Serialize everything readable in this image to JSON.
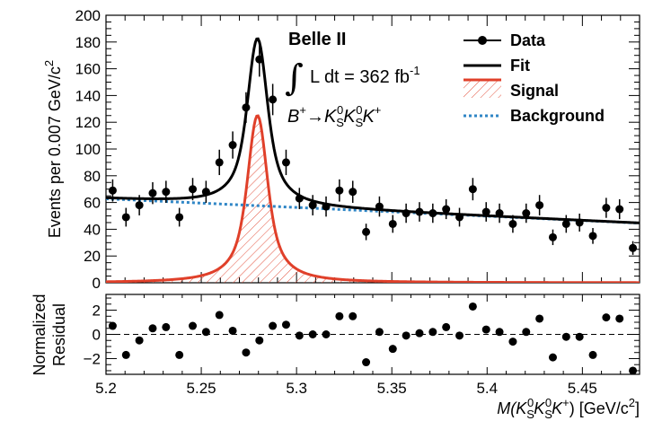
{
  "chart_data": [
    {
      "type": "scatter",
      "panel": "main",
      "title": "",
      "xlabel_parts": {
        "pre": "M(K",
        "s1": "S",
        "p1": "0",
        "mid": "K",
        "s2": "S",
        "p2": "0",
        "k": "K",
        "p3": "+",
        "post": ") [GeV/c",
        "p4": "2",
        "end": "]"
      },
      "ylabel": "Events per 0.007 GeV/c",
      "ylabel_sup": "2",
      "xlim": [
        5.2,
        5.48
      ],
      "ylim": [
        0,
        200
      ],
      "x_ticks": [
        "5.2",
        "5.25",
        "5.3",
        "5.35",
        "5.4",
        "5.45"
      ],
      "x_tick_values": [
        5.2,
        5.25,
        5.3,
        5.35,
        5.4,
        5.45
      ],
      "y_ticks": [
        0,
        20,
        40,
        60,
        80,
        100,
        120,
        140,
        160,
        180,
        200
      ],
      "y_tick_labels": [
        "0",
        "20",
        "40",
        "60",
        "80",
        "100",
        "120",
        "140",
        "160",
        "180",
        "200"
      ],
      "series": [
        {
          "name": "Data",
          "x": [
            5.2035,
            5.2105,
            5.2175,
            5.2245,
            5.2315,
            5.2385,
            5.2455,
            5.2525,
            5.2595,
            5.2665,
            5.2735,
            5.2805,
            5.2875,
            5.2945,
            5.3015,
            5.3085,
            5.3155,
            5.3225,
            5.3295,
            5.3365,
            5.3435,
            5.3505,
            5.3575,
            5.3645,
            5.3715,
            5.3785,
            5.3855,
            5.3925,
            5.3995,
            5.4065,
            5.4135,
            5.4205,
            5.4275,
            5.4345,
            5.4415,
            5.4485,
            5.4555,
            5.4625,
            5.4695,
            5.4765
          ],
          "y": [
            69,
            49,
            58,
            67,
            68,
            49,
            70,
            68,
            90,
            103,
            131,
            167,
            137,
            90,
            63,
            58,
            57,
            69,
            68,
            38,
            57,
            44,
            52,
            53,
            52,
            55,
            49,
            70,
            53,
            52,
            44,
            52,
            58,
            34,
            44,
            45,
            35,
            56,
            55,
            26
          ]
        },
        {
          "name": "Fit",
          "x": [],
          "y": []
        },
        {
          "name": "Signal",
          "x": [],
          "y": []
        },
        {
          "name": "Background",
          "x": [
            5.2,
            5.48
          ],
          "y": [
            62.8,
            44.6
          ]
        }
      ],
      "model": {
        "signal_peak_x": 5.2795,
        "signal_amplitude": 125,
        "signal_core_width": 0.0045,
        "signal_core_fraction": 0.3,
        "signal_lorentz_width": 0.0075,
        "background_y_at_5_2": 62.8,
        "background_y_at_5_48": 44.6
      },
      "legend": [
        "Data",
        "Fit",
        "Signal",
        "Background"
      ],
      "legend_position": "top-right",
      "annotations": {
        "experiment": "Belle II",
        "integral": "∫",
        "lumi": "L dt = 362 fb",
        "lumi_sup": "-1",
        "decay": {
          "b": "B",
          "b_sup": "+",
          "arrow": "→",
          "k": "K",
          "k_sub": "S",
          "k_sup": "0",
          "kp_sup": "+"
        }
      }
    },
    {
      "type": "scatter",
      "panel": "residual",
      "ylabel_line1": "Normalized",
      "ylabel_line2": "Residual",
      "ylim": [
        -3.3,
        3.3
      ],
      "y_ticks": [
        -2,
        0,
        2
      ],
      "y_tick_labels": [
        "−2",
        "0",
        "2"
      ],
      "series": [
        {
          "name": "Normalized Residual",
          "x": [
            5.2035,
            5.2105,
            5.2175,
            5.2245,
            5.2315,
            5.2385,
            5.2455,
            5.2525,
            5.2595,
            5.2665,
            5.2735,
            5.2805,
            5.2875,
            5.2945,
            5.3015,
            5.3085,
            5.3155,
            5.3225,
            5.3295,
            5.3365,
            5.3435,
            5.3505,
            5.3575,
            5.3645,
            5.3715,
            5.3785,
            5.3855,
            5.3925,
            5.3995,
            5.4065,
            5.4135,
            5.4205,
            5.4275,
            5.4345,
            5.4415,
            5.4485,
            5.4555,
            5.4625,
            5.4695,
            5.4765
          ],
          "y": [
            0.7,
            -1.7,
            -0.5,
            0.5,
            0.6,
            -1.7,
            0.7,
            0.2,
            1.6,
            0.3,
            -1.5,
            -0.5,
            0.7,
            0.8,
            -0.1,
            0.0,
            0.0,
            1.5,
            1.5,
            -2.3,
            0.2,
            -1.2,
            -0.1,
            0.1,
            0.2,
            0.6,
            -0.1,
            2.3,
            0.4,
            0.2,
            -0.6,
            0.2,
            1.3,
            -1.9,
            -0.2,
            -0.2,
            -1.7,
            1.4,
            1.3,
            -3.0
          ]
        }
      ]
    }
  ],
  "colors": {
    "signal": "#e0402a",
    "background": "#2f86c6",
    "fit": "#000000",
    "data": "#000000"
  }
}
